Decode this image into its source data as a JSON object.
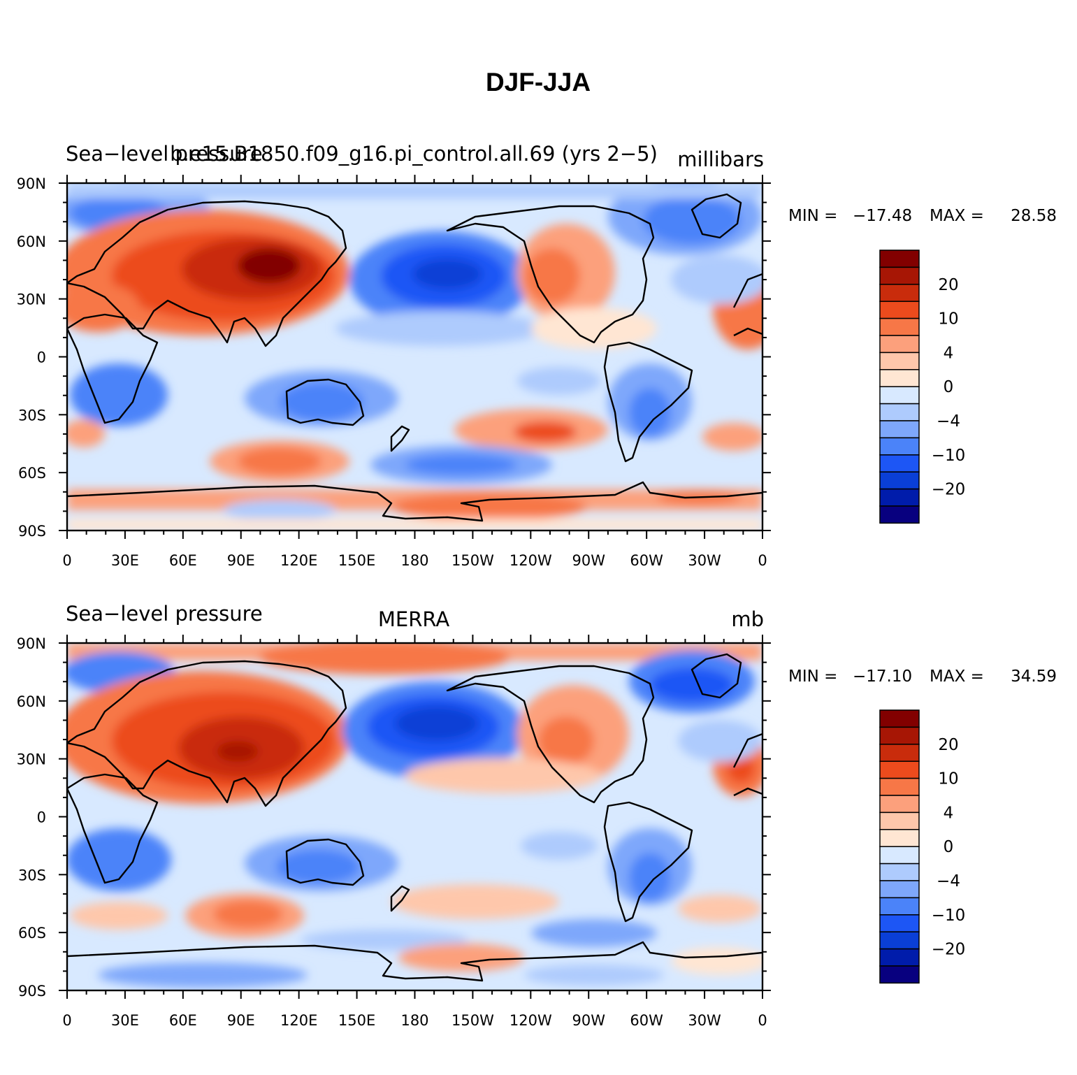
{
  "title": "DJF-JJA",
  "colors": [
    "#08007f",
    "#001cab",
    "#0a3fd6",
    "#1d56f5",
    "#4b83f9",
    "#7ea7fb",
    "#aecbfd",
    "#d8e9ff",
    "#ffe6d3",
    "#fec7ab",
    "#fca07c",
    "#f77747",
    "#ec4b1d",
    "#c92c0c",
    "#a71605",
    "#820000"
  ],
  "colorbar_labels": [
    {
      "band": 1,
      "text": "20"
    },
    {
      "band": 3,
      "text": "10"
    },
    {
      "band": 5,
      "text": "4"
    },
    {
      "band": 7,
      "text": "0"
    },
    {
      "band": 9,
      "text": "−4"
    },
    {
      "band": 11,
      "text": "−10"
    },
    {
      "band": 13,
      "text": "−20"
    }
  ],
  "lon_labels": [
    "0",
    "30E",
    "60E",
    "90E",
    "120E",
    "150E",
    "180",
    "150W",
    "120W",
    "90W",
    "60W",
    "30W",
    "0"
  ],
  "lat_labels": [
    "90N",
    "60N",
    "30N",
    "0",
    "30S",
    "60S",
    "90S"
  ],
  "panels": [
    {
      "left_title": "Sea−level pressure",
      "center_title": "b.e15.B1850.f09_g16.pi_control.all.69 (yrs 2−5)",
      "units": "millibars",
      "min_label": "MIN =",
      "min_value": "−17.48",
      "max_label": "MAX =",
      "max_value": "28.58"
    },
    {
      "left_title": "Sea−level pressure",
      "center_title": "MERRA",
      "units": "mb",
      "min_label": "MIN =",
      "min_value": "−17.10",
      "max_label": "MAX =",
      "max_value": "34.59"
    }
  ]
}
